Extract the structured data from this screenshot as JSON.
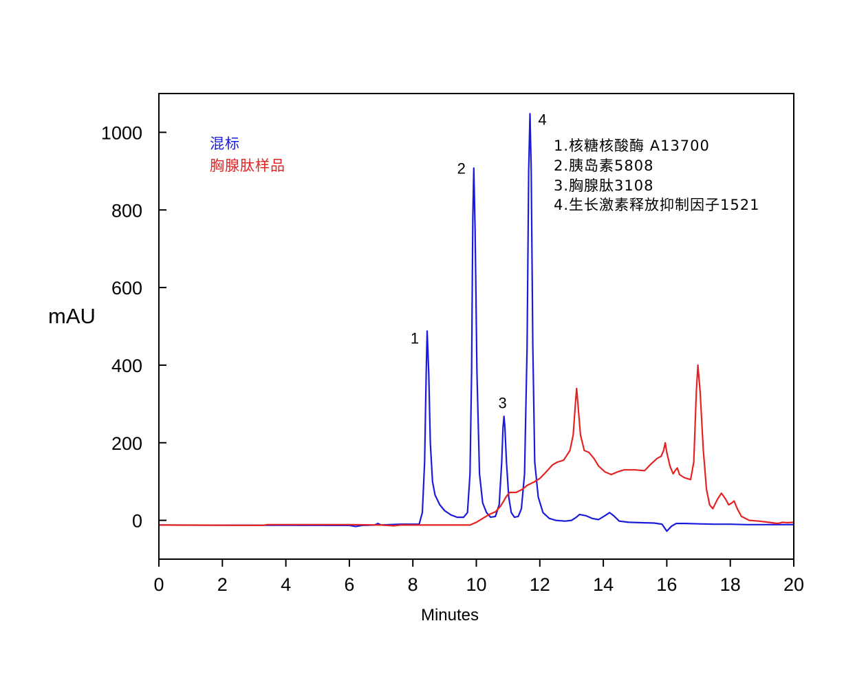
{
  "chart_data": {
    "type": "line",
    "xlabel": "Minutes",
    "ylabel": "mAU",
    "xlim": [
      0,
      20
    ],
    "ylim": [
      -100,
      1100
    ],
    "x_ticks": [
      0,
      2,
      4,
      6,
      8,
      10,
      12,
      14,
      16,
      18,
      20
    ],
    "y_ticks": [
      0,
      200,
      400,
      600,
      800,
      1000
    ],
    "grid": false,
    "legend_position": "top-left",
    "series": [
      {
        "name": "混标",
        "color": "#1a1adc",
        "points": [
          [
            0,
            -12
          ],
          [
            6.0,
            -13
          ],
          [
            6.2,
            -16
          ],
          [
            6.4,
            -13
          ],
          [
            6.8,
            -12
          ],
          [
            6.9,
            -8
          ],
          [
            7.0,
            -12
          ],
          [
            7.6,
            -10
          ],
          [
            8.0,
            -10
          ],
          [
            8.2,
            -10
          ],
          [
            8.3,
            20
          ],
          [
            8.37,
            150
          ],
          [
            8.42,
            380
          ],
          [
            8.45,
            488
          ],
          [
            8.5,
            380
          ],
          [
            8.55,
            200
          ],
          [
            8.62,
            100
          ],
          [
            8.7,
            65
          ],
          [
            8.85,
            40
          ],
          [
            9.0,
            25
          ],
          [
            9.2,
            14
          ],
          [
            9.4,
            8
          ],
          [
            9.6,
            8
          ],
          [
            9.72,
            20
          ],
          [
            9.8,
            120
          ],
          [
            9.85,
            380
          ],
          [
            9.89,
            780
          ],
          [
            9.92,
            908
          ],
          [
            9.96,
            750
          ],
          [
            10.02,
            380
          ],
          [
            10.1,
            120
          ],
          [
            10.2,
            45
          ],
          [
            10.32,
            20
          ],
          [
            10.45,
            8
          ],
          [
            10.6,
            10
          ],
          [
            10.72,
            40
          ],
          [
            10.8,
            150
          ],
          [
            10.84,
            240
          ],
          [
            10.87,
            268
          ],
          [
            10.9,
            240
          ],
          [
            10.95,
            150
          ],
          [
            11.02,
            60
          ],
          [
            11.1,
            20
          ],
          [
            11.2,
            8
          ],
          [
            11.32,
            10
          ],
          [
            11.42,
            30
          ],
          [
            11.52,
            120
          ],
          [
            11.6,
            450
          ],
          [
            11.65,
            900
          ],
          [
            11.69,
            1048
          ],
          [
            11.73,
            900
          ],
          [
            11.78,
            450
          ],
          [
            11.84,
            150
          ],
          [
            11.95,
            60
          ],
          [
            12.1,
            20
          ],
          [
            12.3,
            5
          ],
          [
            12.5,
            0
          ],
          [
            12.8,
            -2
          ],
          [
            13.0,
            0
          ],
          [
            13.15,
            8
          ],
          [
            13.25,
            15
          ],
          [
            13.45,
            12
          ],
          [
            13.65,
            5
          ],
          [
            13.85,
            2
          ],
          [
            14.05,
            12
          ],
          [
            14.2,
            20
          ],
          [
            14.35,
            10
          ],
          [
            14.5,
            -2
          ],
          [
            14.8,
            -5
          ],
          [
            15.2,
            -6
          ],
          [
            15.6,
            -7
          ],
          [
            15.85,
            -10
          ],
          [
            16.0,
            -28
          ],
          [
            16.15,
            -15
          ],
          [
            16.3,
            -8
          ],
          [
            16.6,
            -8
          ],
          [
            17.0,
            -9
          ],
          [
            17.5,
            -10
          ],
          [
            18.0,
            -10
          ],
          [
            18.5,
            -11
          ],
          [
            19.0,
            -11
          ],
          [
            20,
            -11
          ]
        ]
      },
      {
        "name": "胸腺肽样品",
        "color": "#e42222",
        "points": [
          [
            0,
            -12
          ],
          [
            3.3,
            -13
          ],
          [
            3.4,
            -11
          ],
          [
            6.0,
            -11
          ],
          [
            7.0,
            -12
          ],
          [
            7.4,
            -14
          ],
          [
            7.6,
            -12
          ],
          [
            9.8,
            -12
          ],
          [
            10.0,
            -5
          ],
          [
            10.2,
            5
          ],
          [
            10.4,
            15
          ],
          [
            10.6,
            22
          ],
          [
            10.75,
            35
          ],
          [
            10.85,
            48
          ],
          [
            10.95,
            62
          ],
          [
            11.05,
            72
          ],
          [
            11.25,
            72
          ],
          [
            11.45,
            80
          ],
          [
            11.6,
            90
          ],
          [
            11.8,
            98
          ],
          [
            12.0,
            108
          ],
          [
            12.2,
            125
          ],
          [
            12.4,
            143
          ],
          [
            12.55,
            150
          ],
          [
            12.75,
            155
          ],
          [
            12.95,
            180
          ],
          [
            13.05,
            220
          ],
          [
            13.12,
            300
          ],
          [
            13.16,
            340
          ],
          [
            13.2,
            300
          ],
          [
            13.28,
            220
          ],
          [
            13.4,
            180
          ],
          [
            13.55,
            175
          ],
          [
            13.7,
            160
          ],
          [
            13.85,
            140
          ],
          [
            14.05,
            125
          ],
          [
            14.25,
            118
          ],
          [
            14.45,
            125
          ],
          [
            14.65,
            130
          ],
          [
            15.0,
            130
          ],
          [
            15.3,
            128
          ],
          [
            15.5,
            145
          ],
          [
            15.7,
            160
          ],
          [
            15.82,
            165
          ],
          [
            15.9,
            180
          ],
          [
            15.95,
            200
          ],
          [
            16.0,
            175
          ],
          [
            16.1,
            140
          ],
          [
            16.2,
            120
          ],
          [
            16.28,
            130
          ],
          [
            16.33,
            135
          ],
          [
            16.4,
            118
          ],
          [
            16.55,
            110
          ],
          [
            16.75,
            105
          ],
          [
            16.85,
            150
          ],
          [
            16.93,
            330
          ],
          [
            16.98,
            400
          ],
          [
            17.05,
            330
          ],
          [
            17.15,
            180
          ],
          [
            17.25,
            80
          ],
          [
            17.35,
            40
          ],
          [
            17.45,
            30
          ],
          [
            17.6,
            55
          ],
          [
            17.72,
            70
          ],
          [
            17.85,
            55
          ],
          [
            17.95,
            40
          ],
          [
            18.05,
            45
          ],
          [
            18.12,
            50
          ],
          [
            18.22,
            30
          ],
          [
            18.35,
            10
          ],
          [
            18.6,
            0
          ],
          [
            18.9,
            -2
          ],
          [
            19.2,
            -5
          ],
          [
            19.5,
            -8
          ],
          [
            19.65,
            -5
          ],
          [
            19.8,
            -6
          ],
          [
            20,
            -5
          ]
        ]
      }
    ],
    "peak_labels": [
      {
        "text": "1",
        "x": 8.45,
        "y": 488
      },
      {
        "text": "2",
        "x": 9.92,
        "y": 908
      },
      {
        "text": "3",
        "x": 10.87,
        "y": 268
      },
      {
        "text": "4",
        "x": 11.69,
        "y": 1048
      }
    ],
    "notes": [
      "1.核糖核酸酶 A13700",
      "2.胰岛素5808",
      "3.胸腺肽3108",
      "4.生长激素释放抑制因子1521"
    ]
  }
}
